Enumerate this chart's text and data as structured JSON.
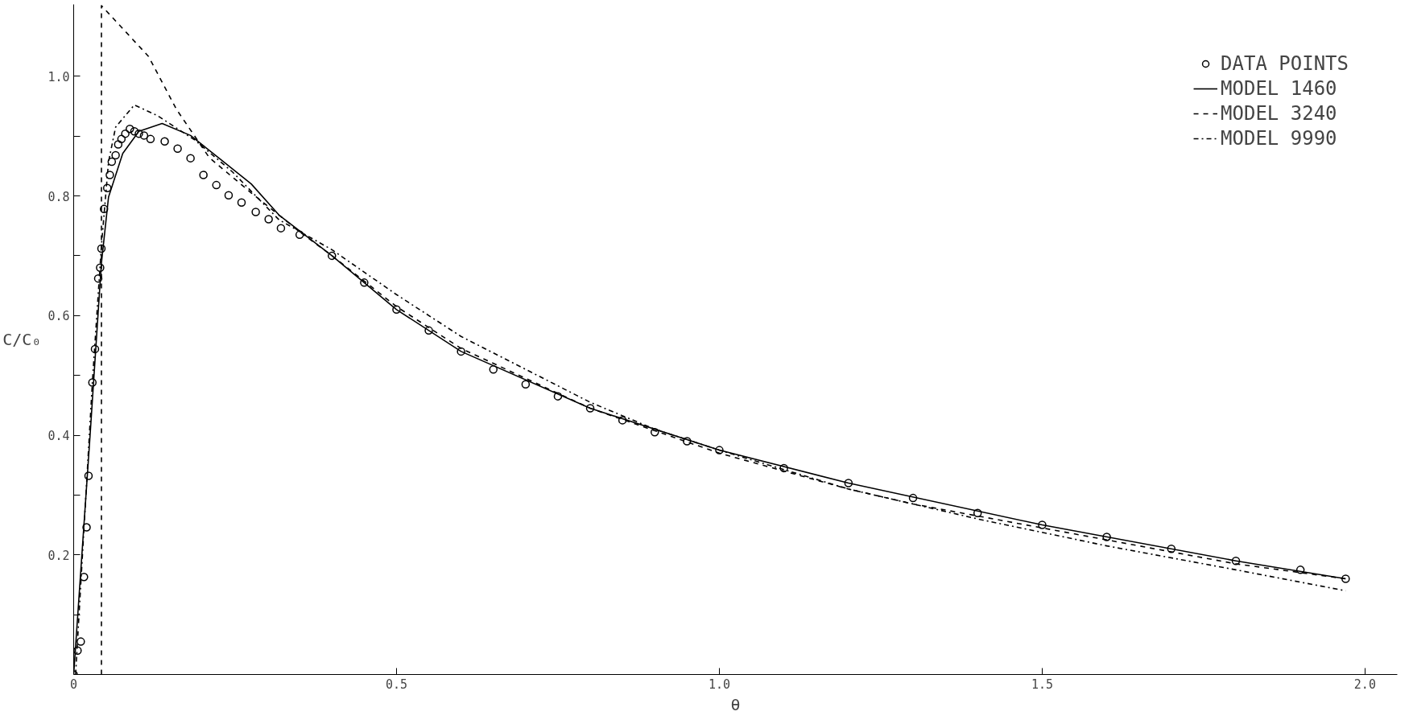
{
  "chart_data": {
    "type": "line",
    "xlabel": "θ",
    "ylabel": "C/C₀",
    "xlim": [
      0,
      2.05
    ],
    "ylim": [
      0,
      1.12
    ],
    "xticks": [
      0,
      0.5,
      {
        "value": 1,
        "label": "1.0"
      },
      1.5,
      {
        "value": 2,
        "label": "2.0"
      }
    ],
    "yticks": [
      {
        "value": 0.1,
        "label": null
      },
      0.2,
      {
        "value": 0.3,
        "label": null
      },
      0.4,
      {
        "value": 0.5,
        "label": null
      },
      0.6,
      {
        "value": 0.7,
        "label": null
      },
      0.8,
      {
        "value": 0.9,
        "label": null
      },
      {
        "value": 1,
        "label": "1.0"
      }
    ],
    "grid": false,
    "legend": "top right",
    "series": [
      {
        "name": "DATA POINTS",
        "type": "scatter",
        "marker": "circle",
        "color": "#000000",
        "x": [
          0,
          0.006,
          0.011,
          0.016,
          0.02,
          0.023,
          0.029,
          0.033,
          0.038,
          0.041,
          0.043,
          0.047,
          0.052,
          0.056,
          0.059,
          0.065,
          0.069,
          0.074,
          0.08,
          0.087,
          0.094,
          0.101,
          0.109,
          0.119,
          0.141,
          0.161,
          0.181,
          0.201,
          0.221,
          0.24,
          0.26,
          0.282,
          0.302,
          0.321,
          0.35,
          0.4,
          0.45,
          0.5,
          0.55,
          0.6,
          0.65,
          0.7,
          0.75,
          0.8,
          0.85,
          0.9,
          0.95,
          1.0,
          1.1,
          1.2,
          1.3,
          1.4,
          1.5,
          1.6,
          1.7,
          1.8,
          1.9,
          1.97
        ],
        "values": [
          0,
          0.04,
          0.055,
          0.163,
          0.246,
          0.332,
          0.488,
          0.544,
          0.662,
          0.68,
          0.712,
          0.778,
          0.813,
          0.835,
          0.857,
          0.868,
          0.886,
          0.895,
          0.904,
          0.912,
          0.908,
          0.904,
          0.901,
          0.895,
          0.891,
          0.879,
          0.863,
          0.835,
          0.818,
          0.801,
          0.789,
          0.773,
          0.761,
          0.746,
          0.735,
          0.7,
          0.655,
          0.61,
          0.575,
          0.54,
          0.51,
          0.485,
          0.465,
          0.445,
          0.425,
          0.405,
          0.39,
          0.375,
          0.345,
          0.32,
          0.295,
          0.27,
          0.25,
          0.23,
          0.21,
          0.19,
          0.175,
          0.16
        ]
      },
      {
        "name": "MODEL 1460",
        "line_style": "solid",
        "color": "#000000",
        "x": [
          0,
          0.025,
          0.043,
          0.054,
          0.076,
          0.101,
          0.137,
          0.181,
          0.224,
          0.275,
          0.318,
          0.4,
          0.5,
          0.6,
          0.8,
          1.0,
          1.2,
          1.5,
          1.8,
          1.97
        ],
        "values": [
          0,
          0.393,
          0.688,
          0.798,
          0.871,
          0.908,
          0.921,
          0.901,
          0.864,
          0.82,
          0.768,
          0.7,
          0.61,
          0.54,
          0.445,
          0.375,
          0.32,
          0.25,
          0.19,
          0.16
        ]
      },
      {
        "name": "MODEL 3240",
        "line_style": "dashed",
        "color": "#000000",
        "x": [
          0.043,
          0.043,
          0.116,
          0.159,
          0.21,
          0.275,
          0.35,
          0.4,
          0.5,
          0.6,
          0.8,
          1.0,
          1.2,
          1.3,
          1.5,
          1.8,
          1.97
        ],
        "values": [
          0,
          1.118,
          1.033,
          0.945,
          0.864,
          0.805,
          0.74,
          0.7,
          0.615,
          0.545,
          0.445,
          0.37,
          0.31,
          0.285,
          0.245,
          0.185,
          0.16
        ]
      },
      {
        "name": "MODEL 9990",
        "line_style": "dashdot",
        "color": "#000000",
        "x": [
          0.003,
          0.029,
          0.043,
          0.054,
          0.065,
          0.094,
          0.13,
          0.188,
          0.246,
          0.318,
          0.4,
          0.5,
          0.6,
          0.7,
          0.8,
          0.9,
          1.0,
          1.2,
          1.4,
          1.6,
          1.8,
          1.97
        ],
        "values": [
          0,
          0.489,
          0.717,
          0.857,
          0.915,
          0.952,
          0.934,
          0.893,
          0.84,
          0.76,
          0.71,
          0.635,
          0.565,
          0.51,
          0.455,
          0.41,
          0.375,
          0.31,
          0.26,
          0.215,
          0.175,
          0.14
        ]
      }
    ]
  }
}
